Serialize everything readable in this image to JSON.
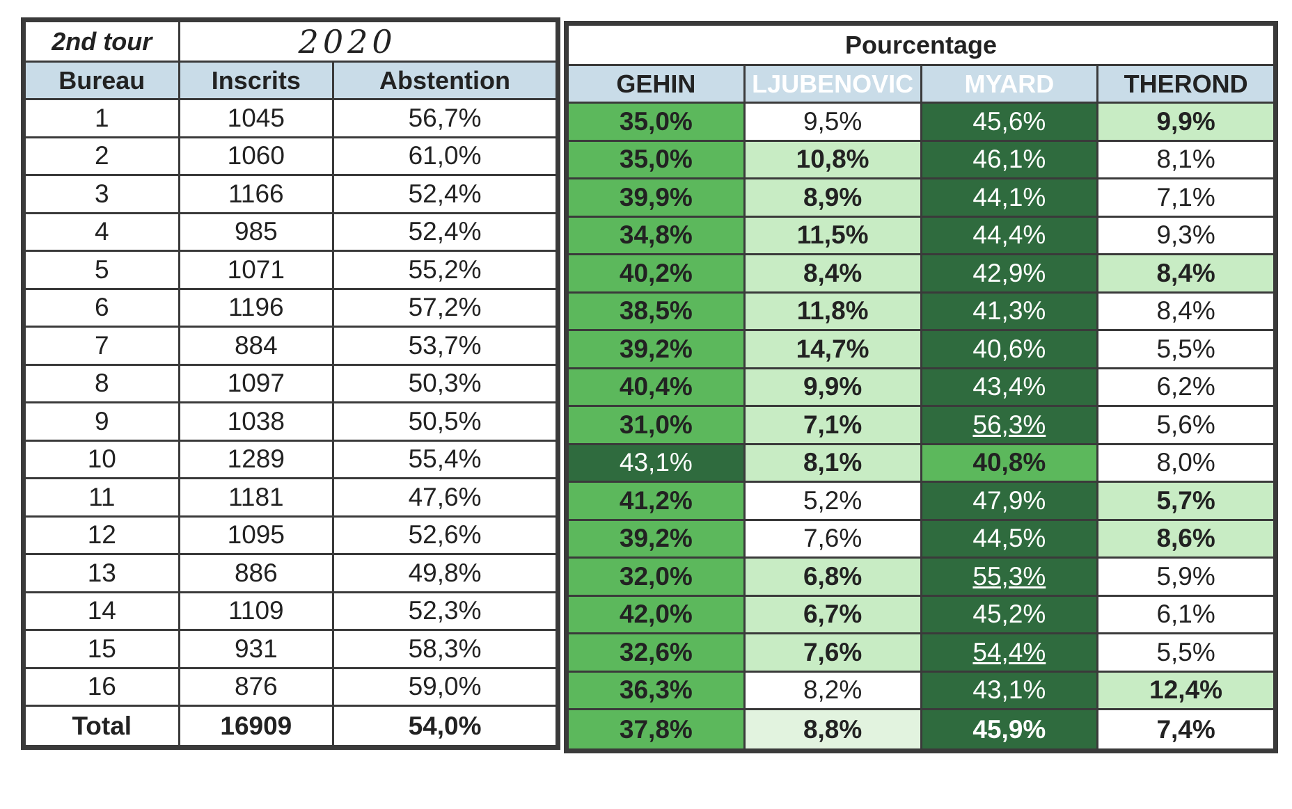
{
  "header": {
    "tour": "2nd tour",
    "year": "2020",
    "pourcentage": "Pourcentage"
  },
  "columns": {
    "bureau": "Bureau",
    "inscrits": "Inscrits",
    "abstention": "Abstention",
    "gehin": "GEHIN",
    "ljubenovic": "LJUBENOVIC",
    "myard": "MYARD",
    "therond": "THEROND"
  },
  "colors": {
    "header_blue": "#a9cde3",
    "ljubenovic_red": "#c0313a",
    "myard_navy": "#2d3e50",
    "green_mid": "#5cb85c",
    "green_dark": "#2f6b3e",
    "green_light": "#c8ecc4"
  },
  "rows": [
    {
      "bureau": "1",
      "inscrits": "1045",
      "abstention": "56,7%",
      "gehin": "35,0%",
      "ljubenovic": "9,5%",
      "myard": "45,6%",
      "therond": "9,9%"
    },
    {
      "bureau": "2",
      "inscrits": "1060",
      "abstention": "61,0%",
      "gehin": "35,0%",
      "ljubenovic": "10,8%",
      "myard": "46,1%",
      "therond": "8,1%"
    },
    {
      "bureau": "3",
      "inscrits": "1166",
      "abstention": "52,4%",
      "gehin": "39,9%",
      "ljubenovic": "8,9%",
      "myard": "44,1%",
      "therond": "7,1%"
    },
    {
      "bureau": "4",
      "inscrits": "985",
      "abstention": "52,4%",
      "gehin": "34,8%",
      "ljubenovic": "11,5%",
      "myard": "44,4%",
      "therond": "9,3%"
    },
    {
      "bureau": "5",
      "inscrits": "1071",
      "abstention": "55,2%",
      "gehin": "40,2%",
      "ljubenovic": "8,4%",
      "myard": "42,9%",
      "therond": "8,4%"
    },
    {
      "bureau": "6",
      "inscrits": "1196",
      "abstention": "57,2%",
      "gehin": "38,5%",
      "ljubenovic": "11,8%",
      "myard": "41,3%",
      "therond": "8,4%"
    },
    {
      "bureau": "7",
      "inscrits": "884",
      "abstention": "53,7%",
      "gehin": "39,2%",
      "ljubenovic": "14,7%",
      "myard": "40,6%",
      "therond": "5,5%"
    },
    {
      "bureau": "8",
      "inscrits": "1097",
      "abstention": "50,3%",
      "gehin": "40,4%",
      "ljubenovic": "9,9%",
      "myard": "43,4%",
      "therond": "6,2%"
    },
    {
      "bureau": "9",
      "inscrits": "1038",
      "abstention": "50,5%",
      "gehin": "31,0%",
      "ljubenovic": "7,1%",
      "myard": "56,3%",
      "therond": "5,6%"
    },
    {
      "bureau": "10",
      "inscrits": "1289",
      "abstention": "55,4%",
      "gehin": "43,1%",
      "ljubenovic": "8,1%",
      "myard": "40,8%",
      "therond": "8,0%"
    },
    {
      "bureau": "11",
      "inscrits": "1181",
      "abstention": "47,6%",
      "gehin": "41,2%",
      "ljubenovic": "5,2%",
      "myard": "47,9%",
      "therond": "5,7%"
    },
    {
      "bureau": "12",
      "inscrits": "1095",
      "abstention": "52,6%",
      "gehin": "39,2%",
      "ljubenovic": "7,6%",
      "myard": "44,5%",
      "therond": "8,6%"
    },
    {
      "bureau": "13",
      "inscrits": "886",
      "abstention": "49,8%",
      "gehin": "32,0%",
      "ljubenovic": "6,8%",
      "myard": "55,3%",
      "therond": "5,9%"
    },
    {
      "bureau": "14",
      "inscrits": "1109",
      "abstention": "52,3%",
      "gehin": "42,0%",
      "ljubenovic": "6,7%",
      "myard": "45,2%",
      "therond": "6,1%"
    },
    {
      "bureau": "15",
      "inscrits": "931",
      "abstention": "58,3%",
      "gehin": "32,6%",
      "ljubenovic": "7,6%",
      "myard": "54,4%",
      "therond": "5,5%"
    },
    {
      "bureau": "16",
      "inscrits": "876",
      "abstention": "59,0%",
      "gehin": "36,3%",
      "ljubenovic": "8,2%",
      "myard": "43,1%",
      "therond": "12,4%"
    }
  ],
  "total": {
    "bureau": "Total",
    "inscrits": "16909",
    "abstention": "54,0%",
    "gehin": "37,8%",
    "ljubenovic": "8,8%",
    "myard": "45,9%",
    "therond": "7,4%"
  }
}
